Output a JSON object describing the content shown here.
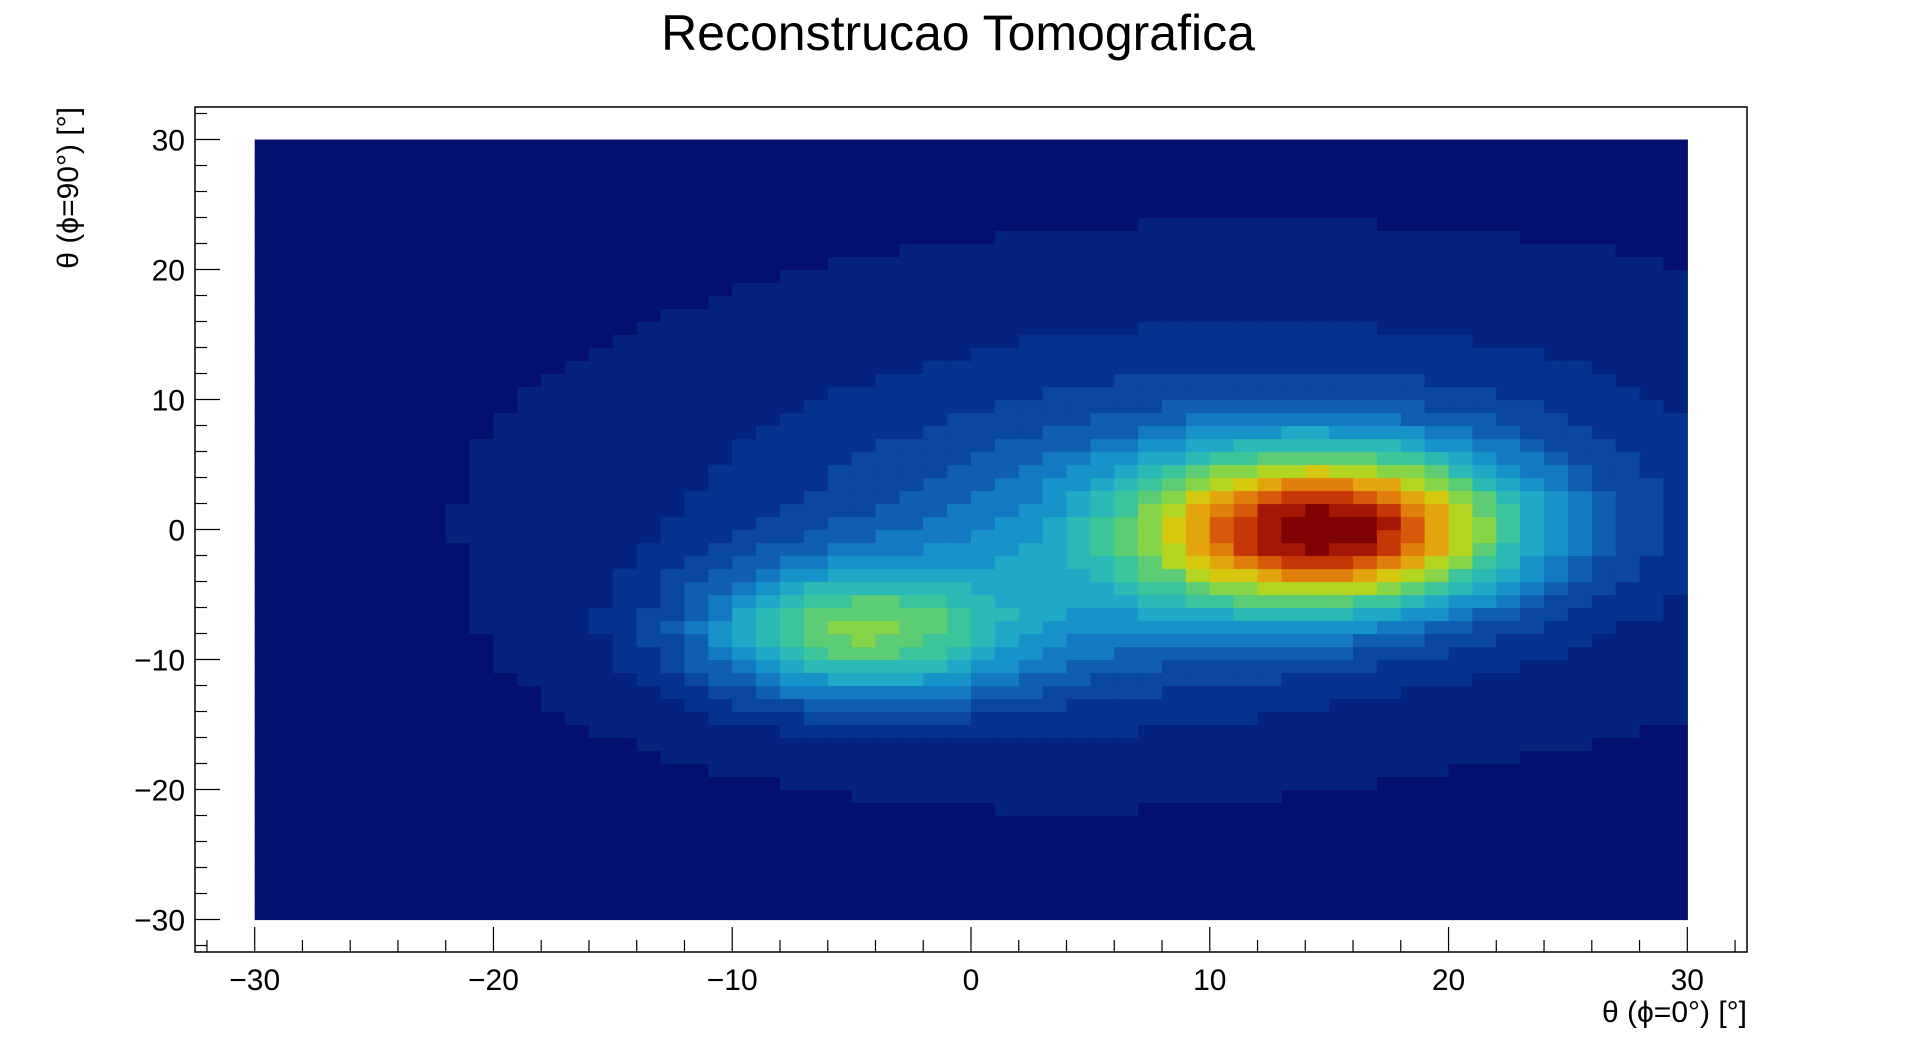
{
  "chart_data": {
    "type": "contour",
    "title": "Reconstrucao Tomografica",
    "xlabel": "θ (ϕ=0°) [°]",
    "ylabel": "θ (ϕ=90°) [°]",
    "xlim": [
      -32.5,
      32.5
    ],
    "ylim": [
      -32.5,
      32.5
    ],
    "data_range": {
      "x": [
        -30,
        30
      ],
      "y": [
        -30,
        30
      ]
    },
    "x_ticks": [
      {
        "value": -30,
        "label": "−30"
      },
      {
        "value": -20,
        "label": "−20"
      },
      {
        "value": -10,
        "label": "−10"
      },
      {
        "value": 0,
        "label": "0"
      },
      {
        "value": 10,
        "label": "10"
      },
      {
        "value": 20,
        "label": "20"
      },
      {
        "value": 30,
        "label": "30"
      }
    ],
    "y_ticks": [
      {
        "value": 30,
        "label": "30"
      },
      {
        "value": 20,
        "label": "20"
      },
      {
        "value": 10,
        "label": "10"
      },
      {
        "value": 0,
        "label": "0"
      },
      {
        "value": -10,
        "label": "−10"
      },
      {
        "value": -20,
        "label": "−20"
      },
      {
        "value": -30,
        "label": "−30"
      }
    ],
    "peaks": [
      {
        "x": 15,
        "y": 0,
        "amplitude": 1.0,
        "sx": 5.5,
        "sy": 4.2
      },
      {
        "x": -5,
        "y": -8,
        "amplitude": 0.52,
        "sx": 4.8,
        "sy": 3.6
      },
      {
        "x": 3,
        "y": -5,
        "amplitude": 0.18,
        "sx": 9,
        "sy": 7
      },
      {
        "x": 12,
        "y": 3,
        "amplitude": 0.22,
        "sx": 14,
        "sy": 9
      }
    ],
    "background_level": 0.05,
    "levels": 20,
    "palette": [
      "#03106e",
      "#04237f",
      "#05338f",
      "#0a479f",
      "#0f5eb0",
      "#137ac2",
      "#1893c9",
      "#20a9c7",
      "#2ab9b5",
      "#3cc49a",
      "#5ccd74",
      "#86d548",
      "#b2d522",
      "#d6c80f",
      "#e3a50e",
      "#e07f0c",
      "#d65a0a",
      "#c63607",
      "#a51705",
      "#7f0303"
    ]
  }
}
